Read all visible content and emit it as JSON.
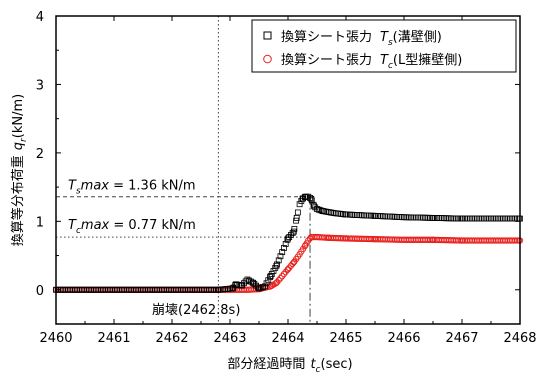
{
  "chart_data": {
    "type": "scatter",
    "xlabel": "部分経過時間",
    "xlabel_var": "t",
    "xlabel_sub": "c",
    "xlabel_unit": "(sec)",
    "ylabel": "換算等分布荷重",
    "ylabel_var": "q",
    "ylabel_sub": "r",
    "ylabel_unit": "(kN/m)",
    "xlim": [
      2460,
      2468
    ],
    "ylim": [
      -0.5,
      4
    ],
    "xticks": [
      "2460",
      "2461",
      "2462",
      "2463",
      "2464",
      "2465",
      "2466",
      "2467",
      "2468"
    ],
    "yticks": [
      "0",
      "1",
      "2",
      "3",
      "4"
    ],
    "grid": false,
    "legend_position": "top-right",
    "series": [
      {
        "name_prefix": "換算シート張力",
        "name_var": "T",
        "name_sub": "s",
        "name_suffix": "(溝壁側)",
        "marker": "square",
        "color": "#000000",
        "points": [
          [
            2460.0,
            0.0
          ],
          [
            2462.8,
            0.0
          ],
          [
            2463.05,
            0.02
          ],
          [
            2463.1,
            0.08
          ],
          [
            2463.2,
            0.06
          ],
          [
            2463.3,
            0.15
          ],
          [
            2463.4,
            0.1
          ],
          [
            2463.5,
            0.02
          ],
          [
            2463.6,
            0.05
          ],
          [
            2463.7,
            0.2
          ],
          [
            2463.8,
            0.35
          ],
          [
            2463.9,
            0.55
          ],
          [
            2464.0,
            0.75
          ],
          [
            2464.05,
            0.8
          ],
          [
            2464.1,
            0.85
          ],
          [
            2464.15,
            1.05
          ],
          [
            2464.2,
            1.25
          ],
          [
            2464.25,
            1.33
          ],
          [
            2464.3,
            1.36
          ],
          [
            2464.35,
            1.36
          ],
          [
            2464.4,
            1.33
          ],
          [
            2464.45,
            1.22
          ],
          [
            2464.5,
            1.18
          ],
          [
            2464.6,
            1.15
          ],
          [
            2464.8,
            1.12
          ],
          [
            2465.0,
            1.1
          ],
          [
            2465.5,
            1.08
          ],
          [
            2466.0,
            1.06
          ],
          [
            2466.5,
            1.05
          ],
          [
            2467.0,
            1.04
          ],
          [
            2467.5,
            1.04
          ],
          [
            2468.0,
            1.04
          ]
        ]
      },
      {
        "name_prefix": "換算シート張力",
        "name_var": "T",
        "name_sub": "c",
        "name_suffix": "(L型擁壁側)",
        "marker": "circle",
        "color": "#e8201c",
        "points": [
          [
            2460.0,
            0.0
          ],
          [
            2462.8,
            0.0
          ],
          [
            2463.3,
            0.0
          ],
          [
            2463.5,
            0.01
          ],
          [
            2463.7,
            0.05
          ],
          [
            2463.8,
            0.1
          ],
          [
            2463.9,
            0.2
          ],
          [
            2464.0,
            0.3
          ],
          [
            2464.1,
            0.4
          ],
          [
            2464.2,
            0.52
          ],
          [
            2464.3,
            0.65
          ],
          [
            2464.35,
            0.72
          ],
          [
            2464.4,
            0.77
          ],
          [
            2464.5,
            0.77
          ],
          [
            2464.7,
            0.76
          ],
          [
            2465.0,
            0.75
          ],
          [
            2465.5,
            0.74
          ],
          [
            2466.0,
            0.73
          ],
          [
            2466.5,
            0.73
          ],
          [
            2467.0,
            0.72
          ],
          [
            2467.5,
            0.72
          ],
          [
            2468.0,
            0.72
          ]
        ]
      }
    ],
    "annotations": {
      "ts_max": {
        "var": "T",
        "sub": "s",
        "text": "max = 1.36 kN/m",
        "value": 1.36,
        "x": 2464.38
      },
      "tc_max": {
        "var": "T",
        "sub": "c",
        "text": "max = 0.77 kN/m",
        "value": 0.77,
        "x": 2464.38
      },
      "collapse": {
        "text": "崩壊(2462.8s)",
        "x": 2462.8
      }
    }
  }
}
